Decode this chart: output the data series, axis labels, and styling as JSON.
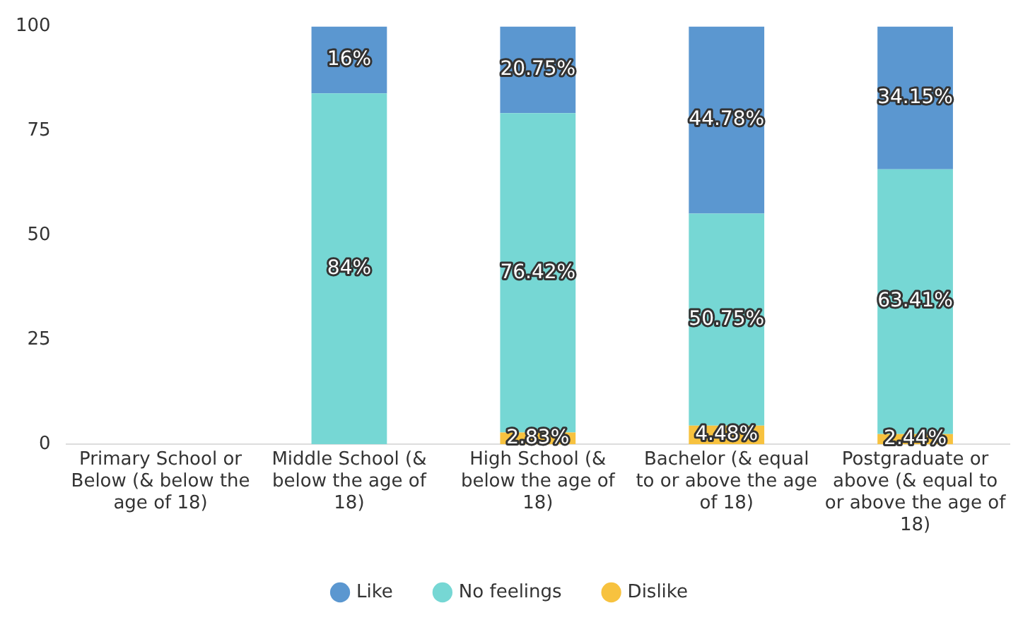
{
  "chart_data": {
    "type": "bar",
    "stacked": true,
    "categories": [
      "Primary School or Below (& below the age of 18)",
      "Middle School (& below the age of 18)",
      "High School (& below the age of 18)",
      "Bachelor (& equal to or above the age of 18)",
      "Postgraduate or above (& equal to or above the age of 18)"
    ],
    "series": [
      {
        "name": "Dislike",
        "color": "#f7c23f",
        "values": [
          null,
          null,
          2.83,
          4.48,
          2.44
        ],
        "value_labels": [
          null,
          null,
          "2.83%",
          "4.48%",
          "2.44%"
        ]
      },
      {
        "name": "No feelings",
        "color": "#76d7d4",
        "values": [
          null,
          84,
          76.42,
          50.75,
          63.41
        ],
        "value_labels": [
          null,
          "84%",
          "76.42%",
          "50.75%",
          "63.41%"
        ]
      },
      {
        "name": "Like",
        "color": "#5b97d0",
        "values": [
          null,
          16,
          20.75,
          44.78,
          34.15
        ],
        "value_labels": [
          null,
          "16%",
          "20.75%",
          "44.78%",
          "34.15%"
        ]
      }
    ],
    "ylim": [
      0,
      100
    ],
    "yticks": [
      0,
      25,
      50,
      75,
      100
    ],
    "grid": false,
    "legend": "bottom"
  }
}
